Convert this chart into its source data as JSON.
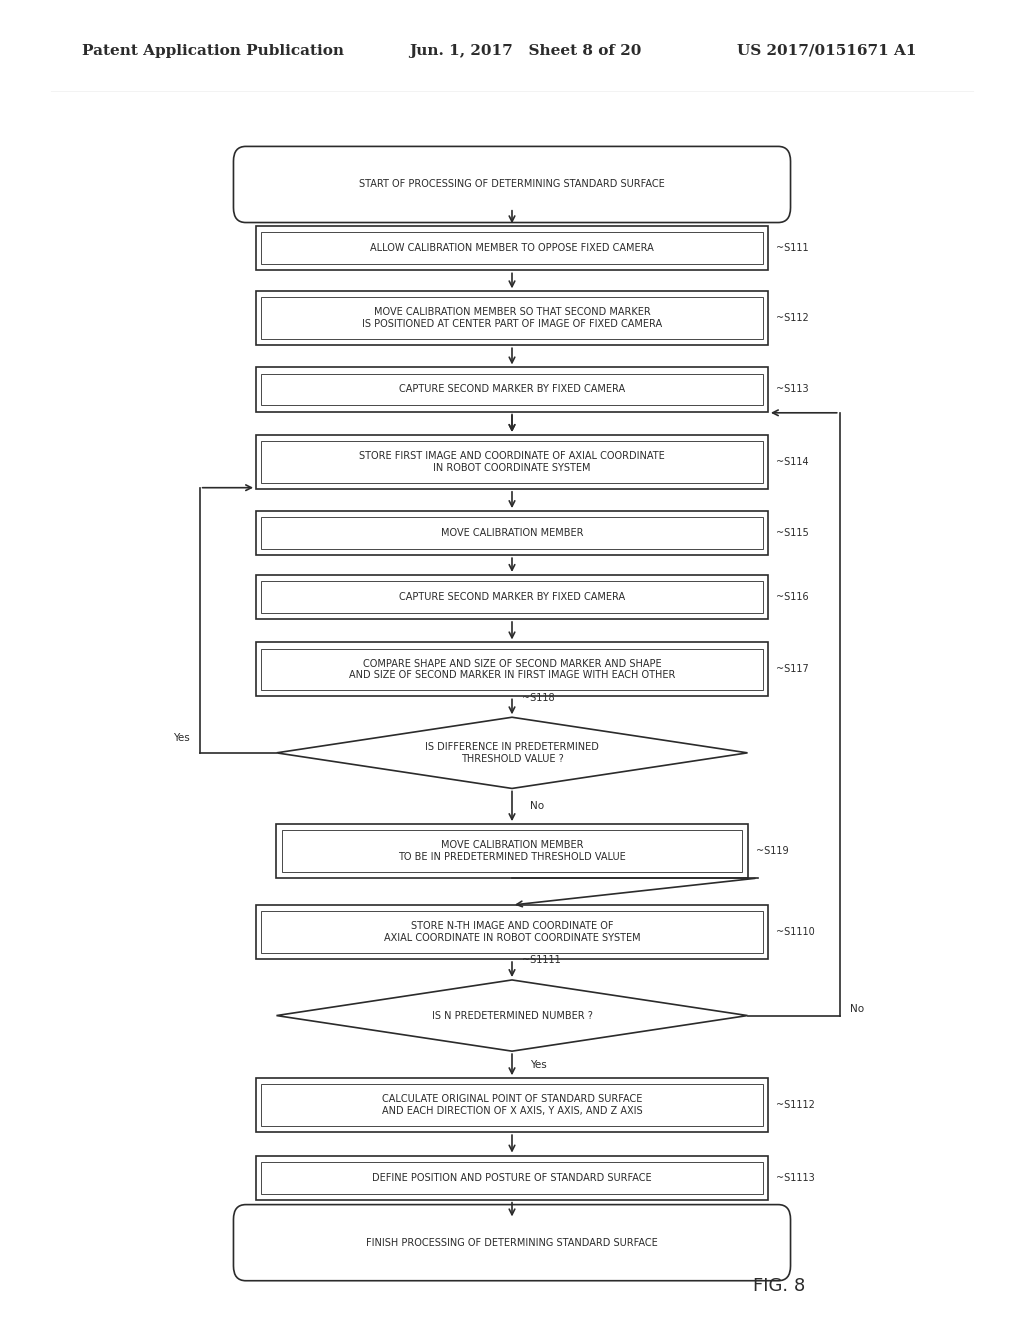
{
  "header_left": "Patent Application Publication",
  "header_center": "Jun. 1, 2017   Sheet 8 of 20",
  "header_right": "US 2017/0151671 A1",
  "fig_label": "FIG. 8",
  "background_color": "#ffffff",
  "line_color": "#2b2b2b",
  "text_color": "#2b2b2b"
}
